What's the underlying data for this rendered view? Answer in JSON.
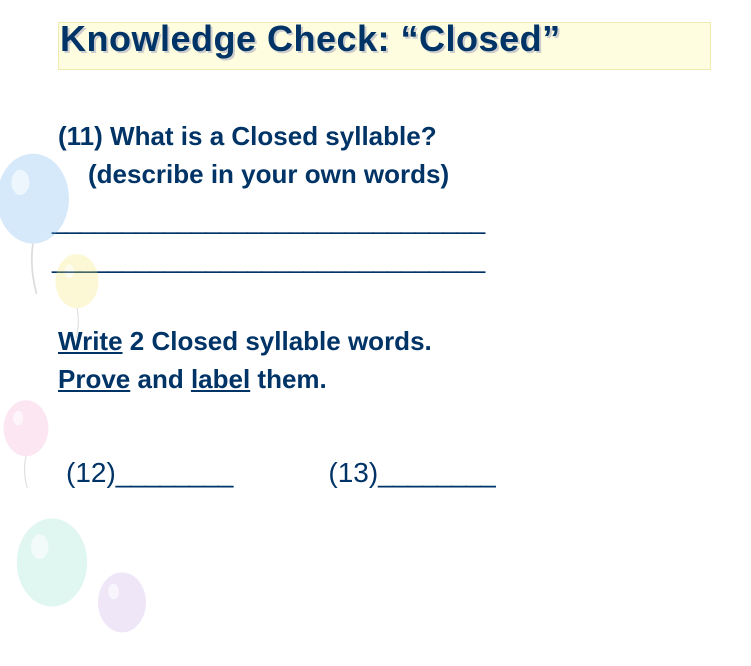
{
  "title": "Knowledge Check:   “Closed”",
  "question11": {
    "number": "(11)",
    "text": "What is a Closed syllable?",
    "sub": "(describe in your own words)"
  },
  "blank_lines": "_______________________________\n_______________________________",
  "instruction": {
    "parts": [
      {
        "text": "Write",
        "underline": true
      },
      {
        "text": " 2 Closed syllable words.",
        "underline": false
      }
    ],
    "line2": [
      {
        "text": "Prove",
        "underline": true
      },
      {
        "text": " and ",
        "underline": false
      },
      {
        "text": "label",
        "underline": true
      },
      {
        "text": " them.",
        "underline": false
      }
    ]
  },
  "answers": [
    {
      "label": "(12)",
      "blank": "________"
    },
    {
      "label": "(13)",
      "blank": "________"
    }
  ],
  "colors": {
    "text": "#003366",
    "highlight_bg": "#fffde0",
    "highlight_border": "#eeeab0",
    "shadow": "#cccccc",
    "balloon_blue": "#6fb1f0",
    "balloon_yellow": "#f5e96b",
    "balloon_pink": "#f4a8d0",
    "balloon_teal": "#8fe0d0",
    "balloon_purple": "#c8a8e8"
  },
  "fonts": {
    "family": "Verdana",
    "title_size_pt": 27,
    "body_size_pt": 20
  }
}
